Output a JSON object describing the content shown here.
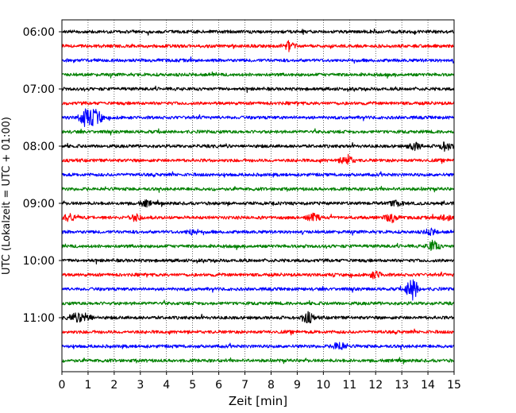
{
  "chart_data": {
    "type": "line",
    "title": "",
    "xlabel": "Zeit  [min]",
    "ylabel": "UTC (Lokalzeit = UTC + 01:00)",
    "xlim": [
      0,
      15
    ],
    "x_ticks": [
      0,
      1,
      2,
      3,
      4,
      5,
      6,
      7,
      8,
      9,
      10,
      11,
      12,
      13,
      14,
      15
    ],
    "y_tick_labels": [
      "06:00",
      "07:00",
      "08:00",
      "09:00",
      "10:00",
      "11:00"
    ],
    "grid": "vertical dotted",
    "trace_colors": [
      "#000000",
      "#ff0000",
      "#0000ff",
      "#008000"
    ],
    "series": [
      {
        "start": "06:00",
        "color": "#000000"
      },
      {
        "start": "06:15",
        "color": "#ff0000",
        "events": [
          {
            "x": 8.7,
            "amp": 0.5
          }
        ]
      },
      {
        "start": "06:30",
        "color": "#0000ff"
      },
      {
        "start": "06:45",
        "color": "#008000"
      },
      {
        "start": "07:00",
        "color": "#000000"
      },
      {
        "start": "07:15",
        "color": "#ff0000"
      },
      {
        "start": "07:30",
        "color": "#0000ff",
        "events": [
          {
            "x": 0.9,
            "amp": 1.0
          },
          {
            "x": 1.3,
            "amp": 0.9
          }
        ]
      },
      {
        "start": "07:45",
        "color": "#008000"
      },
      {
        "start": "08:00",
        "color": "#000000",
        "events": [
          {
            "x": 13.5,
            "amp": 0.4
          },
          {
            "x": 14.7,
            "amp": 0.5
          }
        ]
      },
      {
        "start": "08:15",
        "color": "#ff0000",
        "events": [
          {
            "x": 10.9,
            "amp": 0.6
          }
        ]
      },
      {
        "start": "08:30",
        "color": "#0000ff"
      },
      {
        "start": "08:45",
        "color": "#008000"
      },
      {
        "start": "09:00",
        "color": "#000000",
        "events": [
          {
            "x": 3.2,
            "amp": 0.3
          },
          {
            "x": 12.8,
            "amp": 0.3
          }
        ]
      },
      {
        "start": "09:15",
        "color": "#ff0000",
        "events": [
          {
            "x": 0.3,
            "amp": 0.4
          },
          {
            "x": 2.8,
            "amp": 0.4
          },
          {
            "x": 9.6,
            "amp": 0.4
          },
          {
            "x": 12.6,
            "amp": 0.5
          },
          {
            "x": 14.7,
            "amp": 0.4
          }
        ]
      },
      {
        "start": "09:30",
        "color": "#0000ff",
        "events": [
          {
            "x": 5.0,
            "amp": 0.3
          },
          {
            "x": 14.1,
            "amp": 0.3
          }
        ]
      },
      {
        "start": "09:45",
        "color": "#008000",
        "events": [
          {
            "x": 14.2,
            "amp": 0.6
          }
        ]
      },
      {
        "start": "10:00",
        "color": "#000000"
      },
      {
        "start": "10:15",
        "color": "#ff0000",
        "events": [
          {
            "x": 12.0,
            "amp": 0.4
          }
        ]
      },
      {
        "start": "10:30",
        "color": "#0000ff",
        "events": [
          {
            "x": 13.4,
            "amp": 1.2
          }
        ]
      },
      {
        "start": "10:45",
        "color": "#008000"
      },
      {
        "start": "11:00",
        "color": "#000000",
        "events": [
          {
            "x": 0.5,
            "amp": 0.4
          },
          {
            "x": 0.9,
            "amp": 0.5
          },
          {
            "x": 9.4,
            "amp": 0.6
          }
        ]
      },
      {
        "start": "11:15",
        "color": "#ff0000"
      },
      {
        "start": "11:30",
        "color": "#0000ff",
        "events": [
          {
            "x": 10.6,
            "amp": 0.5
          }
        ]
      },
      {
        "start": "11:45",
        "color": "#008000"
      }
    ]
  }
}
